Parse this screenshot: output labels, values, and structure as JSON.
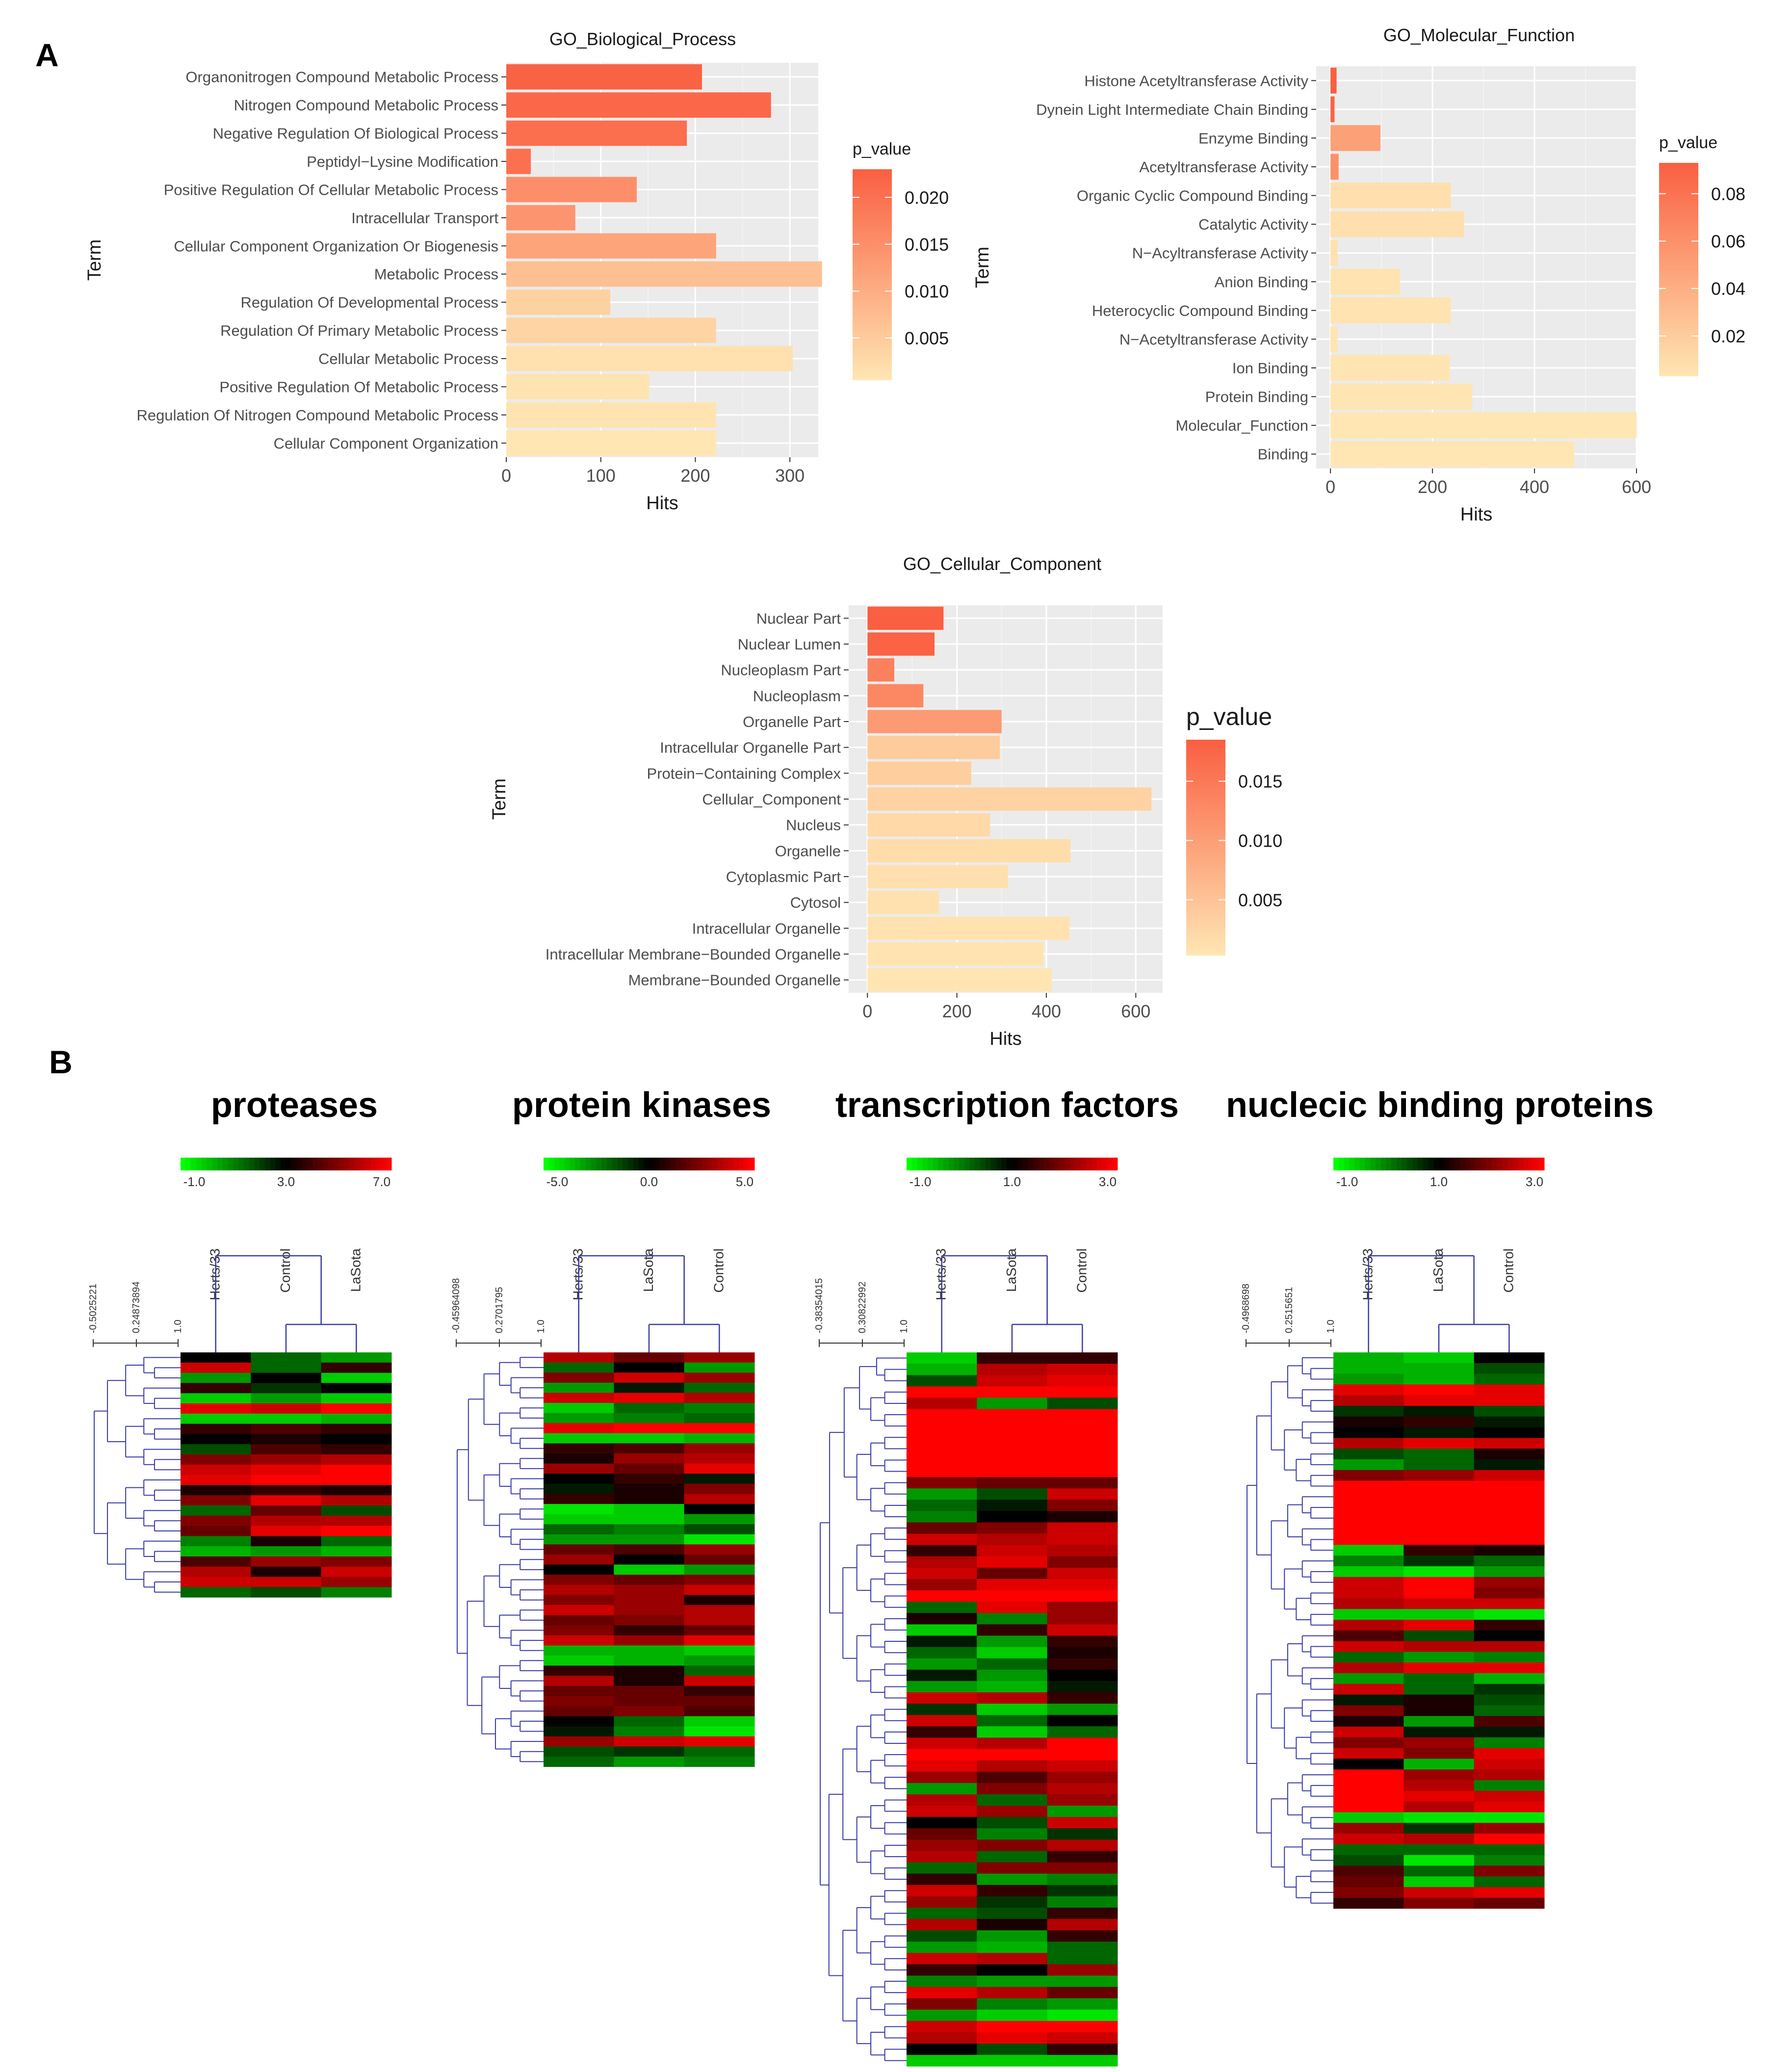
{
  "panels": {
    "a": "A",
    "b": "B"
  },
  "common": {
    "term_axis_title": "Term",
    "hits_axis_title": "Hits",
    "legend_title": "p_value",
    "low_color": "#FFE6B3",
    "high_color": "#FA5F41",
    "panel_bg": "#EBEBEB"
  },
  "chart_data": [
    {
      "type": "bar",
      "orientation": "horizontal",
      "title": "GO_Biological_Process",
      "xlabel": "Hits",
      "ylabel": "Term",
      "xlim": [
        0,
        330
      ],
      "xticks": [
        0,
        100,
        200,
        300
      ],
      "legend_ticks": [
        0.02,
        0.015,
        0.01,
        0.005
      ],
      "legend_tick_labels": [
        "0.020",
        "0.015",
        "0.010",
        "0.005"
      ],
      "legend_range": [
        0.0005,
        0.023
      ],
      "categories": [
        "Organonitrogen Compound Metabolic Process",
        "Nitrogen Compound Metabolic Process",
        "Negative Regulation Of Biological Process",
        "Peptidyl−Lysine Modification",
        "Positive Regulation Of Cellular Metabolic Process",
        "Intracellular Transport",
        "Cellular Component Organization Or Biogenesis",
        "Metabolic Process",
        "Regulation Of Developmental Process",
        "Regulation Of Primary Metabolic Process",
        "Cellular Metabolic Process",
        "Positive Regulation Of Metabolic Process",
        "Regulation Of Nitrogen Compound Metabolic Process",
        "Cellular Component Organization"
      ],
      "values": [
        207,
        280,
        191,
        26,
        138,
        73,
        222,
        334,
        110,
        222,
        303,
        151,
        222,
        222
      ],
      "p_values": [
        0.0225,
        0.0215,
        0.0205,
        0.02,
        0.015,
        0.014,
        0.0115,
        0.007,
        0.004,
        0.0035,
        0.0015,
        0.001,
        0.0008,
        0.0005
      ]
    },
    {
      "type": "bar",
      "orientation": "horizontal",
      "title": "GO_Molecular_Function",
      "xlabel": "Hits",
      "ylabel": "Term",
      "xlim": [
        -28,
        600
      ],
      "xticks": [
        0,
        200,
        400,
        600
      ],
      "legend_ticks": [
        0.08,
        0.06,
        0.04,
        0.02
      ],
      "legend_tick_labels": [
        "0.08",
        "0.06",
        "0.04",
        "0.02"
      ],
      "legend_range": [
        0.003,
        0.093
      ],
      "categories": [
        "Histone Acetyltransferase Activity",
        "Dynein Light Intermediate Chain Binding",
        "Enzyme Binding",
        "Acetyltransferase Activity",
        "Organic Cyclic Compound Binding",
        "Catalytic Activity",
        "N−Acyltransferase Activity",
        "Anion Binding",
        "Heterocyclic Compound Binding",
        "N−Acetyltransferase Activity",
        "Ion Binding",
        "Protein Binding",
        "Molecular_Function",
        "Binding"
      ],
      "values": [
        12,
        8,
        98,
        16,
        236,
        262,
        14,
        136,
        236,
        14,
        234,
        278,
        600,
        478
      ],
      "p_values": [
        0.093,
        0.09,
        0.05,
        0.06,
        0.008,
        0.008,
        0.006,
        0.005,
        0.005,
        0.004,
        0.004,
        0.004,
        0.003,
        0.003
      ]
    },
    {
      "type": "bar",
      "orientation": "horizontal",
      "title": "GO_Cellular_Component",
      "xlabel": "Hits",
      "ylabel": "Term",
      "xlim": [
        -42,
        660
      ],
      "xticks": [
        0,
        200,
        400,
        600
      ],
      "legend_ticks": [
        0.015,
        0.01,
        0.005
      ],
      "legend_tick_labels": [
        "0.015",
        "0.010",
        "0.005"
      ],
      "legend_range": [
        0.0003,
        0.0185
      ],
      "categories": [
        "Nuclear Part",
        "Nuclear Lumen",
        "Nucleoplasm Part",
        "Nucleoplasm",
        "Organelle Part",
        "Intracellular Organelle Part",
        "Protein−Containing Complex",
        "Cellular_Component",
        "Nucleus",
        "Organelle",
        "Cytoplasmic Part",
        "Cytosol",
        "Intracellular Organelle",
        "Intracellular Membrane−Bounded Organelle",
        "Membrane−Bounded Organelle"
      ],
      "values": [
        170,
        150,
        60,
        125,
        300,
        296,
        232,
        635,
        274,
        454,
        314,
        160,
        452,
        394,
        412
      ],
      "p_values": [
        0.0185,
        0.018,
        0.014,
        0.013,
        0.0105,
        0.004,
        0.0035,
        0.003,
        0.002,
        0.0015,
        0.0012,
        0.001,
        0.0008,
        0.0006,
        0.0004
      ]
    },
    {
      "type": "heatmap",
      "title": "proteases",
      "columns": [
        "Herts/33",
        "Control",
        "LaSota"
      ],
      "scale_labels": [
        "-1.0",
        "3.0",
        "7.0"
      ],
      "distance_labels": [
        "-0.5025221",
        "0.24873894",
        "1.0"
      ],
      "values": [
        [
          0.5,
          0.3,
          0.2
        ],
        [
          0.9,
          0.3,
          0.6
        ],
        [
          0.2,
          0.5,
          0.1
        ],
        [
          0.6,
          0.4,
          0.5
        ],
        [
          0.1,
          0.2,
          0.1
        ],
        [
          0.95,
          0.9,
          1.0
        ],
        [
          0.1,
          0.1,
          0.15
        ],
        [
          0.6,
          0.65,
          0.6
        ],
        [
          0.5,
          0.55,
          0.5
        ],
        [
          0.35,
          0.65,
          0.6
        ],
        [
          0.75,
          0.8,
          0.85
        ],
        [
          0.9,
          0.95,
          1.0
        ],
        [
          0.95,
          1.0,
          1.0
        ],
        [
          0.55,
          0.6,
          0.55
        ],
        [
          0.75,
          0.95,
          0.85
        ],
        [
          0.3,
          0.7,
          0.35
        ],
        [
          0.75,
          0.85,
          0.85
        ],
        [
          0.7,
          0.95,
          1.0
        ],
        [
          0.25,
          0.55,
          0.3
        ],
        [
          0.15,
          0.2,
          0.15
        ],
        [
          0.65,
          0.8,
          0.75
        ],
        [
          0.85,
          0.55,
          0.9
        ],
        [
          0.9,
          0.9,
          0.8
        ],
        [
          0.3,
          0.35,
          0.25
        ]
      ]
    },
    {
      "type": "heatmap",
      "title": "protein kinases",
      "columns": [
        "Herts/33",
        "LaSota",
        "Control"
      ],
      "scale_labels": [
        "-5.0",
        "0.0",
        "5.0"
      ],
      "distance_labels": [
        "-0.45964098",
        "0.2701795",
        "1.0"
      ],
      "values": [
        [
          0.85,
          0.7,
          0.8
        ],
        [
          0.3,
          0.5,
          0.2
        ],
        [
          0.75,
          0.9,
          0.8
        ],
        [
          0.2,
          0.45,
          0.3
        ],
        [
          0.9,
          0.95,
          0.85
        ],
        [
          0.1,
          0.3,
          0.25
        ],
        [
          0.2,
          0.25,
          0.3
        ],
        [
          0.95,
          1.0,
          1.0
        ],
        [
          0.1,
          0.1,
          0.15
        ],
        [
          0.6,
          0.65,
          0.8
        ],
        [
          0.55,
          0.8,
          0.85
        ],
        [
          0.8,
          0.7,
          0.95
        ],
        [
          0.5,
          0.6,
          0.45
        ],
        [
          0.45,
          0.55,
          0.75
        ],
        [
          0.6,
          0.55,
          0.85
        ],
        [
          0.05,
          0.1,
          0.5
        ],
        [
          0.1,
          0.1,
          0.2
        ],
        [
          0.3,
          0.25,
          0.35
        ],
        [
          0.2,
          0.2,
          0.05
        ],
        [
          0.7,
          0.65,
          0.8
        ],
        [
          0.8,
          0.5,
          0.7
        ],
        [
          0.5,
          0.1,
          0.2
        ],
        [
          0.75,
          0.7,
          0.75
        ],
        [
          0.85,
          0.8,
          0.9
        ],
        [
          0.75,
          0.8,
          0.55
        ],
        [
          0.9,
          0.8,
          0.85
        ],
        [
          0.7,
          0.75,
          0.85
        ],
        [
          0.75,
          0.6,
          0.7
        ],
        [
          0.9,
          0.8,
          0.95
        ],
        [
          0.15,
          0.15,
          0.1
        ],
        [
          0.1,
          0.15,
          0.2
        ],
        [
          0.6,
          0.55,
          0.3
        ],
        [
          0.85,
          0.55,
          0.9
        ],
        [
          0.7,
          0.7,
          0.6
        ],
        [
          0.75,
          0.7,
          0.7
        ],
        [
          0.7,
          0.75,
          0.65
        ],
        [
          0.5,
          0.3,
          0.1
        ],
        [
          0.45,
          0.25,
          0.05
        ],
        [
          0.8,
          0.9,
          0.95
        ],
        [
          0.35,
          0.4,
          0.3
        ],
        [
          0.3,
          0.2,
          0.25
        ]
      ]
    },
    {
      "type": "heatmap",
      "title": "transcription factors",
      "columns": [
        "Herts/33",
        "LaSota",
        "Control"
      ],
      "scale_labels": [
        "-1.0",
        "1.0",
        "3.0"
      ],
      "distance_labels": [
        "-0.38354015",
        "0.30822992",
        "1.0"
      ],
      "values": [
        [
          0.1,
          0.6,
          0.6
        ],
        [
          0.15,
          0.85,
          0.9
        ],
        [
          0.35,
          0.9,
          0.95
        ],
        [
          1,
          1,
          1
        ],
        [
          0.85,
          0.2,
          0.35
        ],
        [
          1,
          1,
          1
        ],
        [
          1,
          1,
          1
        ],
        [
          1,
          1,
          1
        ],
        [
          1,
          1,
          1
        ],
        [
          1,
          1,
          1
        ],
        [
          1,
          1,
          1
        ],
        [
          0.75,
          0.7,
          0.7
        ],
        [
          0.2,
          0.35,
          0.9
        ],
        [
          0.3,
          0.45,
          0.75
        ],
        [
          0.25,
          0.5,
          0.55
        ],
        [
          0.7,
          0.75,
          0.9
        ],
        [
          0.9,
          0.85,
          0.9
        ],
        [
          0.6,
          0.9,
          0.85
        ],
        [
          0.85,
          0.95,
          0.75
        ],
        [
          0.9,
          0.7,
          0.9
        ],
        [
          0.8,
          0.95,
          0.95
        ],
        [
          1,
          1,
          1
        ],
        [
          0.3,
          0.95,
          0.8
        ],
        [
          0.55,
          0.25,
          0.8
        ],
        [
          0.1,
          0.6,
          0.9
        ],
        [
          0.45,
          0.2,
          0.6
        ],
        [
          0.3,
          0.1,
          0.55
        ],
        [
          0.2,
          0.3,
          0.6
        ],
        [
          0.45,
          0.2,
          0.5
        ],
        [
          0.2,
          0.15,
          0.45
        ],
        [
          0.9,
          0.85,
          0.6
        ],
        [
          0.4,
          0.1,
          0.2
        ],
        [
          0.9,
          0.3,
          0.5
        ],
        [
          0.6,
          0.1,
          0.3
        ],
        [
          0.9,
          0.85,
          1
        ],
        [
          1,
          1,
          1
        ],
        [
          0.95,
          0.85,
          0.9
        ],
        [
          0.8,
          0.65,
          0.8
        ],
        [
          0.2,
          0.75,
          0.85
        ],
        [
          0.85,
          0.3,
          0.8
        ],
        [
          0.9,
          0.8,
          0.2
        ],
        [
          0.5,
          0.35,
          0.9
        ],
        [
          0.7,
          0.25,
          0.4
        ],
        [
          0.8,
          0.75,
          0.85
        ],
        [
          0.85,
          0.3,
          0.6
        ],
        [
          0.3,
          0.75,
          0.75
        ],
        [
          0.6,
          0.2,
          0.25
        ],
        [
          0.9,
          0.6,
          0.4
        ],
        [
          0.8,
          0.4,
          0.25
        ],
        [
          0.3,
          0.35,
          0.6
        ],
        [
          0.85,
          0.55,
          0.85
        ],
        [
          0.35,
          0.2,
          0.6
        ],
        [
          0.2,
          0.15,
          0.3
        ],
        [
          0.9,
          0.85,
          0.3
        ],
        [
          0.6,
          0.5,
          0.8
        ],
        [
          0.25,
          0.2,
          0.2
        ],
        [
          0.95,
          0.85,
          0.7
        ],
        [
          0.75,
          0.25,
          0.2
        ],
        [
          0.2,
          0.1,
          0.05
        ],
        [
          0.9,
          1,
          1
        ],
        [
          0.85,
          0.95,
          0.9
        ],
        [
          0.5,
          0.35,
          0.6
        ],
        [
          0.1,
          0.1,
          0.1
        ]
      ]
    },
    {
      "type": "heatmap",
      "title": "nuclecic binding proteins",
      "columns": [
        "Herts/33",
        "LaSota",
        "Control"
      ],
      "scale_labels": [
        "-1.0",
        "1.0",
        "3.0"
      ],
      "distance_labels": [
        "-0.4968698",
        "0.2515651",
        "1.0"
      ],
      "values": [
        [
          0.15,
          0.1,
          0.5
        ],
        [
          0.15,
          0.15,
          0.35
        ],
        [
          0.2,
          0.15,
          0.3
        ],
        [
          0.95,
          1,
          0.95
        ],
        [
          0.85,
          0.95,
          0.95
        ],
        [
          0.4,
          0.45,
          0.35
        ],
        [
          0.55,
          0.6,
          0.45
        ],
        [
          0.5,
          0.45,
          0.5
        ],
        [
          0.85,
          0.95,
          0.9
        ],
        [
          0.35,
          0.3,
          0.55
        ],
        [
          0.2,
          0.3,
          0.45
        ],
        [
          0.75,
          0.8,
          0.9
        ],
        [
          1,
          1,
          1
        ],
        [
          1,
          1,
          1
        ],
        [
          1,
          1,
          1
        ],
        [
          1,
          1,
          1
        ],
        [
          1,
          1,
          1
        ],
        [
          1,
          1,
          1
        ],
        [
          0.1,
          0.6,
          0.55
        ],
        [
          0.25,
          0.4,
          0.3
        ],
        [
          0.1,
          0.05,
          0.2
        ],
        [
          0.9,
          1,
          0.8
        ],
        [
          0.9,
          1,
          0.75
        ],
        [
          0.85,
          0.9,
          0.9
        ],
        [
          0.1,
          0.1,
          0.05
        ],
        [
          0.85,
          0.95,
          0.6
        ],
        [
          0.65,
          0.35,
          0.5
        ],
        [
          0.9,
          0.85,
          0.85
        ],
        [
          0.3,
          0.2,
          0.25
        ],
        [
          0.85,
          0.95,
          0.95
        ],
        [
          0.2,
          0.3,
          0.15
        ],
        [
          0.9,
          0.3,
          0.4
        ],
        [
          0.45,
          0.55,
          0.35
        ],
        [
          0.75,
          0.55,
          0.3
        ],
        [
          0.55,
          0.2,
          0.65
        ],
        [
          0.9,
          0.45,
          0.45
        ],
        [
          0.75,
          0.8,
          0.25
        ],
        [
          0.9,
          0.75,
          0.95
        ],
        [
          0.5,
          0.15,
          0.9
        ],
        [
          1,
          0.8,
          0.85
        ],
        [
          1,
          0.85,
          0.25
        ],
        [
          1,
          0.95,
          0.9
        ],
        [
          1,
          0.85,
          0.95
        ],
        [
          0.1,
          0.05,
          0.05
        ],
        [
          0.8,
          0.4,
          0.8
        ],
        [
          0.9,
          0.85,
          1
        ],
        [
          0.3,
          0.3,
          0.3
        ],
        [
          0.35,
          0.05,
          0.25
        ],
        [
          0.65,
          0.3,
          0.75
        ],
        [
          0.7,
          0.1,
          0.3
        ],
        [
          0.75,
          0.9,
          0.95
        ],
        [
          0.6,
          0.75,
          0.7
        ]
      ]
    }
  ]
}
